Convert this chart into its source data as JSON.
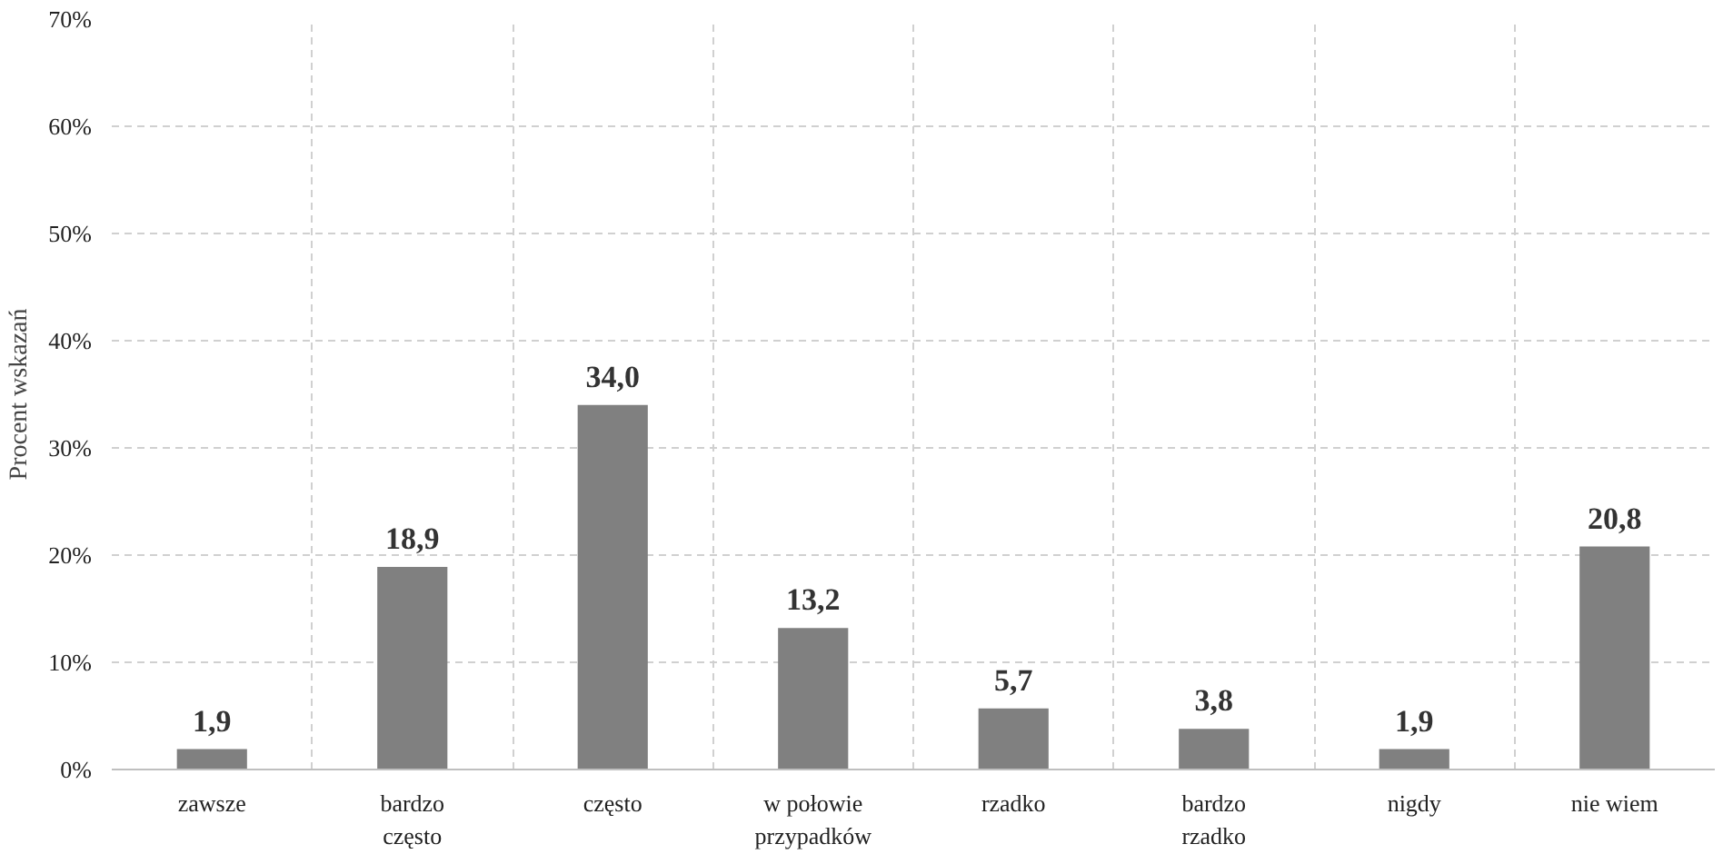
{
  "chart_data": {
    "type": "bar",
    "ylabel": "Procent wskazań",
    "categories": [
      "zawsze",
      "bardzo często",
      "często",
      "w połowie przypadków",
      "rzadko",
      "bardzo rzadko",
      "nigdy",
      "nie wiem"
    ],
    "values": [
      1.9,
      18.9,
      34.0,
      13.2,
      5.7,
      3.8,
      1.9,
      20.8
    ],
    "value_labels": [
      "1,9",
      "18,9",
      "34,0",
      "13,2",
      "5,7",
      "3,8",
      "1,9",
      "20,8"
    ],
    "color": "#808080",
    "ylim": [
      0,
      70
    ],
    "yticks": [
      {
        "value": 0,
        "label": "0%"
      },
      {
        "value": 10,
        "label": "10%"
      },
      {
        "value": 20,
        "label": "20%"
      },
      {
        "value": 30,
        "label": "30%"
      },
      {
        "value": 40,
        "label": "40%"
      },
      {
        "value": 50,
        "label": "50%"
      },
      {
        "value": 60,
        "label": "60%"
      },
      {
        "value": 70,
        "label": "70%"
      }
    ],
    "grid": true
  }
}
